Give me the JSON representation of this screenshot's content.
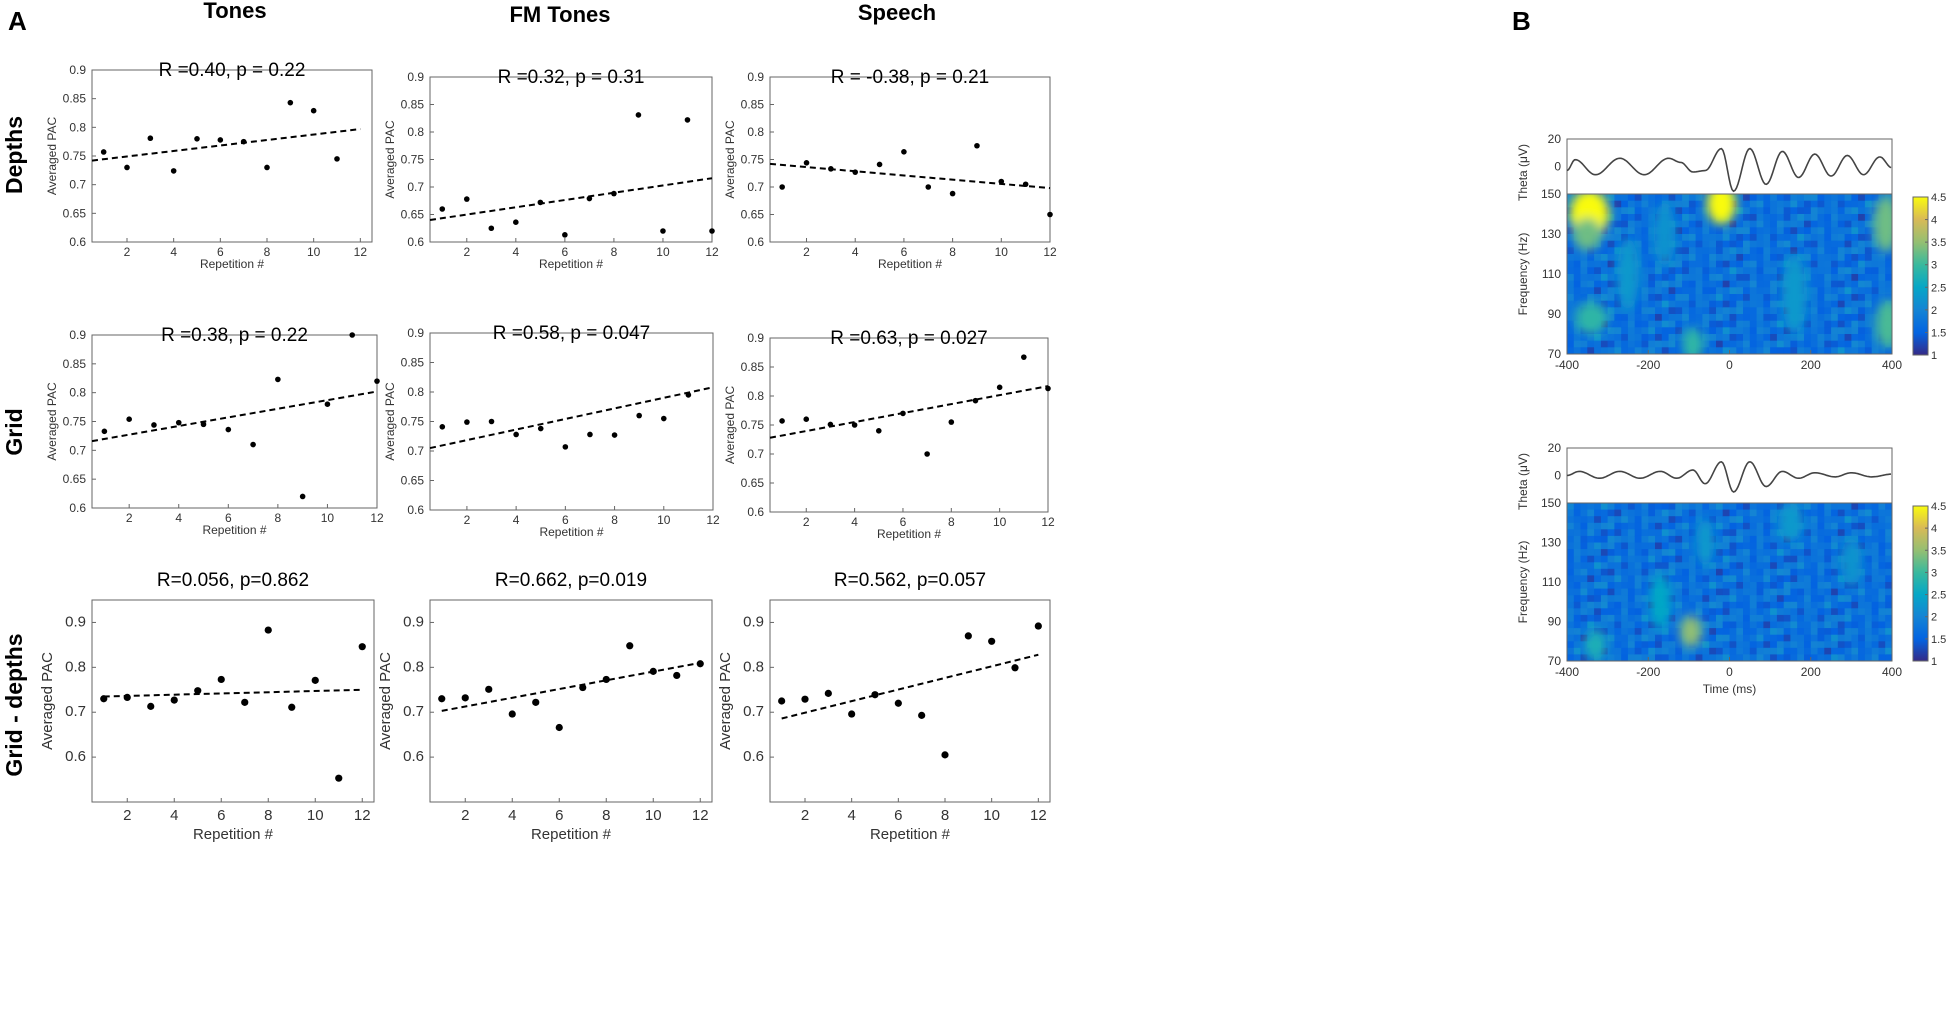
{
  "figure": {
    "panel_labels": [
      "A",
      "B"
    ],
    "column_titles": [
      "Tones",
      "FM Tones",
      "Speech"
    ],
    "row_titles": [
      "Depths",
      "Grid",
      "Grid - depths"
    ]
  },
  "chart_data": [
    {
      "id": "depths-tones",
      "type": "scatter",
      "row": "Depths",
      "column": "Tones",
      "annotation": "R =0.40,  p = 0.22",
      "xlabel": "Repetition #",
      "ylabel": "Averaged PAC",
      "xlim": [
        0.5,
        12.5
      ],
      "ylim": [
        0.6,
        0.9
      ],
      "xticks": [
        2,
        4,
        6,
        8,
        10,
        12
      ],
      "yticks": [
        0.6,
        0.65,
        0.7,
        0.75,
        0.8,
        0.85,
        0.9
      ],
      "ytick_labels": [
        "0.6",
        "0.65",
        "0.7",
        "0.75",
        "0.8",
        "0.85",
        "0.9"
      ],
      "x": [
        1,
        2,
        3,
        4,
        5,
        6,
        7,
        8,
        9,
        10,
        11
      ],
      "y": [
        0.757,
        0.73,
        0.781,
        0.724,
        0.78,
        0.778,
        0.775,
        0.73,
        0.843,
        0.829,
        0.745
      ],
      "trend": {
        "x": [
          0.5,
          12
        ],
        "y": [
          0.742,
          0.797
        ]
      }
    },
    {
      "id": "depths-fm",
      "type": "scatter",
      "row": "Depths",
      "column": "FM Tones",
      "annotation": "R =0.32,  p = 0.31",
      "xlabel": "Repetition #",
      "ylabel": "Averaged PAC",
      "xlim": [
        0.5,
        12
      ],
      "ylim": [
        0.6,
        0.9
      ],
      "xticks": [
        2,
        4,
        6,
        8,
        10,
        12
      ],
      "yticks": [
        0.6,
        0.65,
        0.7,
        0.75,
        0.8,
        0.85,
        0.9
      ],
      "ytick_labels": [
        "0.6",
        "0.65",
        "0.7",
        "0.75",
        "0.8",
        "0.85",
        "0.9"
      ],
      "x": [
        1,
        2,
        3,
        4,
        5,
        6,
        7,
        8,
        9,
        10,
        11,
        12
      ],
      "y": [
        0.66,
        0.678,
        0.625,
        0.636,
        0.672,
        0.613,
        0.679,
        0.688,
        0.831,
        0.62,
        0.822,
        0.62
      ],
      "trend": {
        "x": [
          0.5,
          12
        ],
        "y": [
          0.64,
          0.716
        ]
      }
    },
    {
      "id": "depths-speech",
      "type": "scatter",
      "row": "Depths",
      "column": "Speech",
      "annotation": "R = -0.38,  p = 0.21",
      "xlabel": "Repetition #",
      "ylabel": "Averaged PAC",
      "xlim": [
        0.5,
        12
      ],
      "ylim": [
        0.6,
        0.9
      ],
      "xticks": [
        2,
        4,
        6,
        8,
        10,
        12
      ],
      "yticks": [
        0.6,
        0.65,
        0.7,
        0.75,
        0.8,
        0.85,
        0.9
      ],
      "ytick_labels": [
        "0.6",
        "0.65",
        "0.7",
        "0.75",
        "0.8",
        "0.85",
        "0.9"
      ],
      "x": [
        1,
        2,
        3,
        4,
        5,
        6,
        7,
        8,
        9,
        10,
        11,
        12
      ],
      "y": [
        0.7,
        0.744,
        0.733,
        0.727,
        0.741,
        0.764,
        0.7,
        0.688,
        0.775,
        0.71,
        0.705,
        0.65
      ],
      "trend": {
        "x": [
          0.5,
          12
        ],
        "y": [
          0.742,
          0.698
        ]
      }
    },
    {
      "id": "grid-tones",
      "type": "scatter",
      "row": "Grid",
      "column": "Tones",
      "annotation": "R =0.38,  p = 0.22",
      "xlabel": "Repetition #",
      "ylabel": "Averaged PAC",
      "xlim": [
        0.5,
        12
      ],
      "ylim": [
        0.6,
        0.9
      ],
      "xticks": [
        2,
        4,
        6,
        8,
        10,
        12
      ],
      "yticks": [
        0.6,
        0.65,
        0.7,
        0.75,
        0.8,
        0.85,
        0.9
      ],
      "ytick_labels": [
        "0.6",
        "0.65",
        "0.7",
        "0.75",
        "0.8",
        "0.85",
        "0.9"
      ],
      "x": [
        1,
        2,
        3,
        4,
        5,
        6,
        7,
        8,
        9,
        10,
        11,
        12
      ],
      "y": [
        0.733,
        0.754,
        0.744,
        0.748,
        0.745,
        0.736,
        0.71,
        0.823,
        0.62,
        0.78,
        0.9,
        0.82
      ],
      "trend": {
        "x": [
          0.5,
          12
        ],
        "y": [
          0.716,
          0.802
        ]
      }
    },
    {
      "id": "grid-fm",
      "type": "scatter",
      "row": "Grid",
      "column": "FM Tones",
      "annotation": "R =0.58, p = 0.047",
      "xlabel": "Repetition #",
      "ylabel": "Averaged PAC",
      "xlim": [
        0.5,
        12
      ],
      "ylim": [
        0.6,
        0.9
      ],
      "xticks": [
        2,
        4,
        6,
        8,
        10,
        12
      ],
      "yticks": [
        0.6,
        0.65,
        0.7,
        0.75,
        0.8,
        0.85,
        0.9
      ],
      "ytick_labels": [
        "0.6",
        "0.65",
        "0.7",
        "0.75",
        "0.8",
        "0.85",
        "0.9"
      ],
      "x": [
        1,
        2,
        3,
        4,
        5,
        6,
        7,
        8,
        9,
        10,
        11
      ],
      "y": [
        0.741,
        0.749,
        0.75,
        0.728,
        0.738,
        0.707,
        0.728,
        0.727,
        0.76,
        0.755,
        0.795
      ],
      "trend": {
        "x": [
          0.5,
          12
        ],
        "y": [
          0.705,
          0.808
        ]
      }
    },
    {
      "id": "grid-speech",
      "type": "scatter",
      "row": "Grid",
      "column": "Speech",
      "annotation": "R =0.63,  p = 0.027",
      "xlabel": "Repetition #",
      "ylabel": "Averaged PAC",
      "xlim": [
        0.5,
        12
      ],
      "ylim": [
        0.6,
        0.9
      ],
      "xticks": [
        2,
        4,
        6,
        8,
        10,
        12
      ],
      "yticks": [
        0.6,
        0.65,
        0.7,
        0.75,
        0.8,
        0.85,
        0.9
      ],
      "ytick_labels": [
        "0.6",
        "0.65",
        "0.7",
        "0.75",
        "0.8",
        "0.85",
        "0.9"
      ],
      "x": [
        1,
        2,
        3,
        4,
        5,
        6,
        7,
        8,
        9,
        10,
        11,
        12
      ],
      "y": [
        0.757,
        0.76,
        0.751,
        0.75,
        0.74,
        0.77,
        0.7,
        0.755,
        0.792,
        0.815,
        0.867,
        0.813
      ],
      "trend": {
        "x": [
          0.5,
          12
        ],
        "y": [
          0.728,
          0.817
        ]
      }
    },
    {
      "id": "gd-tones",
      "type": "scatter",
      "row": "Grid - depths",
      "column": "Tones",
      "annotation": "R=0.056,  p=0.862",
      "xlabel": "Repetition #",
      "ylabel": "Averaged PAC",
      "xlim": [
        0.5,
        12.5
      ],
      "ylim": [
        0.5,
        0.95
      ],
      "big": true,
      "xticks": [
        2,
        4,
        6,
        8,
        10,
        12
      ],
      "yticks": [
        0.6,
        0.7,
        0.8,
        0.9
      ],
      "ytick_labels": [
        "0.6",
        "0.7",
        "0.8",
        "0.9"
      ],
      "x": [
        1,
        2,
        3,
        4,
        5,
        6,
        7,
        8,
        9,
        10,
        11,
        12
      ],
      "y": [
        0.73,
        0.733,
        0.713,
        0.727,
        0.748,
        0.773,
        0.722,
        0.883,
        0.711,
        0.771,
        0.553,
        0.846
      ],
      "trend": {
        "x": [
          1,
          12
        ],
        "y": [
          0.735,
          0.75
        ]
      }
    },
    {
      "id": "gd-fm",
      "type": "scatter",
      "row": "Grid - depths",
      "column": "FM Tones",
      "annotation": "R=0.662,  p=0.019",
      "xlabel": "Repetition #",
      "ylabel": "Averaged PAC",
      "xlim": [
        0.5,
        12.5
      ],
      "ylim": [
        0.5,
        0.95
      ],
      "big": true,
      "xticks": [
        2,
        4,
        6,
        8,
        10,
        12
      ],
      "yticks": [
        0.6,
        0.7,
        0.8,
        0.9
      ],
      "ytick_labels": [
        "0.6",
        "0.7",
        "0.8",
        "0.9"
      ],
      "x": [
        1,
        2,
        3,
        4,
        5,
        6,
        7,
        8,
        9,
        10,
        11,
        12
      ],
      "y": [
        0.73,
        0.732,
        0.751,
        0.696,
        0.722,
        0.666,
        0.755,
        0.773,
        0.848,
        0.791,
        0.782,
        0.808
      ],
      "trend": {
        "x": [
          1,
          12
        ],
        "y": [
          0.703,
          0.81
        ]
      }
    },
    {
      "id": "gd-speech",
      "type": "scatter",
      "row": "Grid - depths",
      "column": "Speech",
      "annotation": "R=0.562,  p=0.057",
      "xlabel": "Repetition #",
      "ylabel": "Averaged PAC",
      "xlim": [
        0.5,
        12.5
      ],
      "ylim": [
        0.5,
        0.95
      ],
      "big": true,
      "xticks": [
        2,
        4,
        6,
        8,
        10,
        12
      ],
      "yticks": [
        0.6,
        0.7,
        0.8,
        0.9
      ],
      "ytick_labels": [
        "0.6",
        "0.7",
        "0.8",
        "0.9"
      ],
      "x": [
        1,
        2,
        3,
        4,
        5,
        6,
        7,
        8,
        9,
        10,
        11,
        12
      ],
      "y": [
        0.725,
        0.729,
        0.742,
        0.696,
        0.739,
        0.72,
        0.693,
        0.605,
        0.87,
        0.858,
        0.799,
        0.892
      ],
      "trend": {
        "x": [
          1,
          12
        ],
        "y": [
          0.686,
          0.828
        ]
      }
    },
    {
      "id": "B-top",
      "type": "heatmap",
      "panel": "B",
      "trace": {
        "ylabel": "Theta (μV)",
        "ylim": [
          -20,
          20
        ],
        "yticks": [
          0,
          20
        ],
        "ytick_labels": [
          "0",
          "20"
        ],
        "peaks": [
          [
            -400,
            -3
          ],
          [
            -380,
            5
          ],
          [
            -330,
            -6
          ],
          [
            -270,
            6
          ],
          [
            -210,
            -6
          ],
          [
            -150,
            6
          ],
          [
            -120,
            3
          ],
          [
            -90,
            -4
          ],
          [
            -60,
            -3
          ],
          [
            -20,
            13
          ],
          [
            10,
            -18
          ],
          [
            50,
            13
          ],
          [
            90,
            -13
          ],
          [
            130,
            11
          ],
          [
            170,
            -8
          ],
          [
            210,
            9
          ],
          [
            250,
            -7
          ],
          [
            290,
            8
          ],
          [
            330,
            -6
          ],
          [
            370,
            7
          ],
          [
            400,
            -1
          ]
        ]
      },
      "xlim": [
        -400,
        400
      ],
      "xticks": [
        -400,
        -200,
        0,
        200,
        400
      ],
      "xtick_labels": [
        "-400",
        "-200",
        "0",
        "200",
        "400"
      ],
      "ylabel": "Frequency (Hz)",
      "yticks": [
        70,
        90,
        110,
        130,
        150
      ],
      "ytick_labels": [
        "70",
        "90",
        "110",
        "130",
        "150"
      ],
      "colorbar": {
        "range": [
          1,
          4.5
        ],
        "ticks": [
          1,
          1.5,
          2,
          2.5,
          3,
          3.5,
          4,
          4.5
        ],
        "tick_labels": [
          "1",
          "1.5",
          "2",
          "2.5",
          "3",
          "3.5",
          "4",
          "4.5"
        ]
      },
      "hotspots": [
        [
          -345,
          140,
          22,
          12,
          3.2
        ],
        [
          -350,
          130,
          16,
          8,
          1.6
        ],
        [
          -20,
          145,
          16,
          10,
          3.0
        ],
        [
          -340,
          88,
          18,
          8,
          1.2
        ],
        [
          -90,
          75,
          12,
          8,
          1.2
        ],
        [
          385,
          135,
          14,
          14,
          1.6
        ],
        [
          390,
          85,
          14,
          12,
          1.4
        ],
        [
          -250,
          110,
          12,
          18,
          0.6
        ],
        [
          160,
          100,
          14,
          20,
          0.6
        ],
        [
          -160,
          130,
          12,
          16,
          0.5
        ]
      ]
    },
    {
      "id": "B-bottom",
      "type": "heatmap",
      "panel": "B",
      "trace": {
        "ylabel": "Theta (μV)",
        "ylim": [
          -20,
          20
        ],
        "yticks": [
          0,
          20
        ],
        "ytick_labels": [
          "0",
          "20"
        ],
        "peaks": [
          [
            -400,
            0
          ],
          [
            -370,
            3
          ],
          [
            -320,
            -2
          ],
          [
            -270,
            3
          ],
          [
            -220,
            -2
          ],
          [
            -170,
            3
          ],
          [
            -130,
            -2
          ],
          [
            -90,
            4
          ],
          [
            -60,
            -6
          ],
          [
            -20,
            10
          ],
          [
            10,
            -12
          ],
          [
            50,
            10
          ],
          [
            90,
            -8
          ],
          [
            130,
            3
          ],
          [
            170,
            -2
          ],
          [
            210,
            2
          ],
          [
            260,
            -1
          ],
          [
            300,
            2
          ],
          [
            350,
            -1
          ],
          [
            400,
            1
          ]
        ]
      },
      "xlim": [
        -400,
        400
      ],
      "xticks": [
        -400,
        -200,
        0,
        200,
        400
      ],
      "xtick_labels": [
        "-400",
        "-200",
        "0",
        "200",
        "400"
      ],
      "xlabel": "Time (ms)",
      "ylabel": "Frequency (Hz)",
      "yticks": [
        70,
        90,
        110,
        130,
        150
      ],
      "ytick_labels": [
        "70",
        "90",
        "110",
        "130",
        "150"
      ],
      "colorbar": {
        "range": [
          1,
          4.5
        ],
        "ticks": [
          1,
          1.5,
          2,
          2.5,
          3,
          3.5,
          4,
          4.5
        ],
        "tick_labels": [
          "1",
          "1.5",
          "2",
          "2.5",
          "3",
          "3.5",
          "4",
          "4.5"
        ]
      },
      "hotspots": [
        [
          -95,
          85,
          12,
          8,
          1.8
        ],
        [
          -330,
          78,
          12,
          8,
          1.0
        ],
        [
          -170,
          100,
          12,
          14,
          0.8
        ],
        [
          150,
          140,
          14,
          10,
          0.6
        ],
        [
          -60,
          130,
          10,
          12,
          0.6
        ],
        [
          300,
          120,
          12,
          12,
          0.5
        ]
      ]
    }
  ]
}
